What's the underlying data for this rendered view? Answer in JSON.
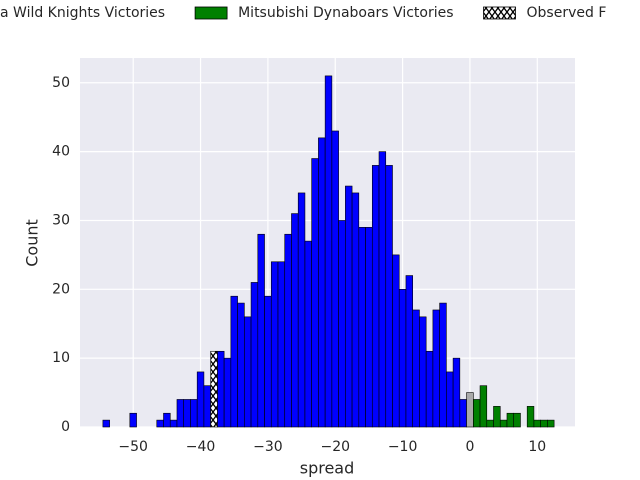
{
  "chart_data": {
    "type": "histogram",
    "x_label": "spread",
    "y_label": "Count",
    "xlim": [
      -57.9,
      15.6
    ],
    "ylim": [
      0,
      53.6
    ],
    "xticks": [
      {
        "value": -50,
        "label": "−50"
      },
      {
        "value": -40,
        "label": "−40"
      },
      {
        "value": -30,
        "label": "−30"
      },
      {
        "value": -20,
        "label": "−20"
      },
      {
        "value": -10,
        "label": "−10"
      },
      0,
      10
    ],
    "yticks": [
      0,
      10,
      20,
      30,
      40,
      50
    ],
    "grid": true,
    "series": [
      {
        "name": "a Wild Knights Victories",
        "color": "#0000ff",
        "bins": [
          -54.5,
          -53.5,
          -52.5,
          -51.5,
          -50.5,
          -49.5,
          -48.5,
          -47.5,
          -46.5,
          -45.5,
          -44.5,
          -43.5,
          -42.5,
          -41.5,
          -40.5,
          -39.5,
          -38.5,
          -37.5,
          -36.5,
          -35.5,
          -34.5,
          -33.5,
          -32.5,
          -31.5,
          -30.5,
          -29.5,
          -28.5,
          -27.5,
          -26.5,
          -25.5,
          -24.5,
          -23.5,
          -22.5,
          -21.5,
          -20.5,
          -19.5,
          -18.5,
          -17.5,
          -16.5,
          -15.5,
          -14.5,
          -13.5,
          -12.5,
          -11.5,
          -10.5,
          -9.5,
          -8.5,
          -7.5,
          -6.5,
          -5.5,
          -4.5,
          -3.5,
          -2.5,
          -1.5,
          -0.5
        ],
        "counts": [
          1,
          0,
          0,
          0,
          2,
          0,
          0,
          0,
          1,
          2,
          1,
          4,
          4,
          4,
          8,
          6,
          null,
          11,
          10,
          19,
          18,
          16,
          21,
          28,
          19,
          24,
          24,
          28,
          31,
          34,
          27,
          39,
          42,
          51,
          43,
          30,
          35,
          34,
          29,
          29,
          38,
          40,
          38,
          25,
          20,
          22,
          17,
          16,
          11,
          17,
          18,
          8,
          10,
          4
        ]
      },
      {
        "name": "Mitsubishi Dynaboars Victories",
        "color": "#008000",
        "bins": [
          0.5,
          1.5,
          2.5,
          3.5,
          4.5,
          5.5,
          6.5,
          7.5,
          8.5,
          9.5,
          10.5,
          11.5,
          12.5
        ],
        "counts": [
          4,
          6,
          1,
          3,
          1,
          2,
          2,
          0,
          3,
          1,
          1,
          1
        ]
      },
      {
        "name": "Observed F",
        "color": "hatch",
        "bins": [
          -38.5,
          -37.5
        ],
        "counts": [
          11
        ]
      },
      {
        "color": "#aaaaaa",
        "bins": [
          -0.5,
          0.5
        ],
        "counts": [
          5
        ]
      }
    ]
  }
}
